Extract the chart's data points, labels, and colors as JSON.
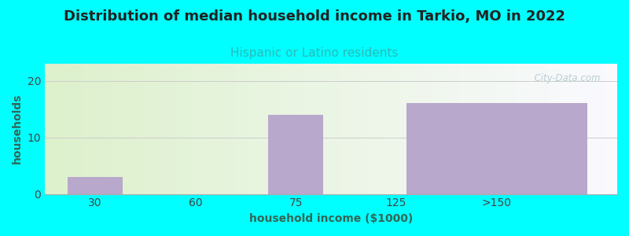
{
  "title": "Distribution of median household income in Tarkio, MO in 2022",
  "subtitle": "Hispanic or Latino residents",
  "xlabel": "household income ($1000)",
  "ylabel": "households",
  "background_color": "#00ffff",
  "bar_color": "#b8a8cc",
  "categories": [
    "30",
    "60",
    "75",
    "125",
    ">150"
  ],
  "values": [
    3,
    0,
    14,
    0,
    16
  ],
  "ylim": [
    0,
    23
  ],
  "yticks": [
    0,
    10,
    20
  ],
  "title_fontsize": 13,
  "subtitle_fontsize": 11,
  "subtitle_color": "#2ababa",
  "title_color": "#222222",
  "axis_label_color": "#336655",
  "tick_color": "#444444",
  "grid_color": "#cccccc",
  "watermark": "  City-Data.com"
}
